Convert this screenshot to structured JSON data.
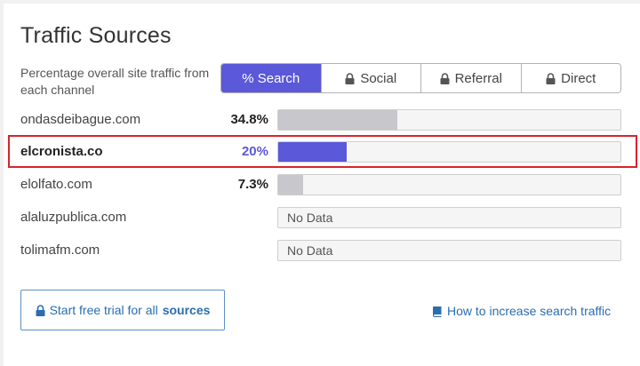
{
  "title": "Traffic Sources",
  "description": "Percentage overall site traffic from each channel",
  "tabs": [
    {
      "label": "% Search",
      "locked": false,
      "active": true
    },
    {
      "label": "Social",
      "locked": true,
      "active": false
    },
    {
      "label": "Referral",
      "locked": true,
      "active": false
    },
    {
      "label": "Direct",
      "locked": true,
      "active": false
    }
  ],
  "rows": [
    {
      "site": "ondasdeibague.com",
      "percent_label": "34.8%",
      "value": 34.8,
      "no_data": false,
      "highlighted": false
    },
    {
      "site": "elcronista.co",
      "percent_label": "20%",
      "value": 20,
      "no_data": false,
      "highlighted": true
    },
    {
      "site": "elolfato.com",
      "percent_label": "7.3%",
      "value": 7.3,
      "no_data": false,
      "highlighted": false
    },
    {
      "site": "alaluzpublica.com",
      "percent_label": "",
      "value": null,
      "no_data": true,
      "no_data_label": "No Data",
      "highlighted": false
    },
    {
      "site": "tolimafm.com",
      "percent_label": "",
      "value": null,
      "no_data": true,
      "no_data_label": "No Data",
      "highlighted": false
    }
  ],
  "trial_button": {
    "prefix": "Start free trial for all",
    "emphasis": "sources",
    "icon": "lock-icon"
  },
  "howto_link": {
    "label": "How to increase search traffic",
    "icon": "book-icon"
  },
  "colors": {
    "accent": "#5b58d9",
    "highlight_border": "#d9242b",
    "link": "#2a6db0",
    "bar_fill": "#c8c8cc"
  }
}
